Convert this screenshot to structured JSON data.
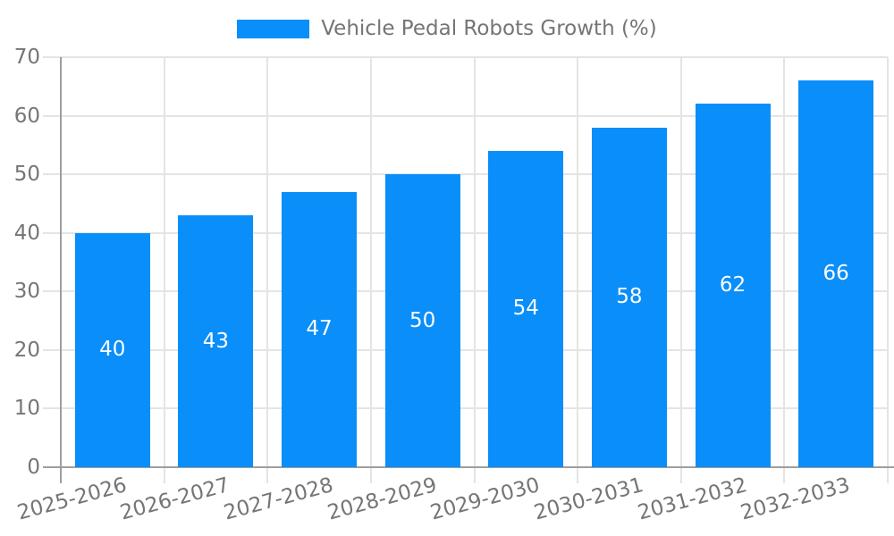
{
  "chart_data": {
    "type": "bar",
    "title": "Vehicle Pedal Robots Growth (%)",
    "legend": {
      "position": "top",
      "entries": [
        "Vehicle Pedal Robots Growth (%)"
      ]
    },
    "categories": [
      "2025-2026",
      "2026-2027",
      "2027-2028",
      "2028-2029",
      "2029-2030",
      "2030-2031",
      "2031-2032",
      "2032-2033"
    ],
    "values": [
      40,
      43,
      47,
      50,
      54,
      58,
      62,
      66
    ],
    "bar_value_labels": [
      "40",
      "43",
      "47",
      "50",
      "54",
      "58",
      "62",
      "66"
    ],
    "xlabel": "",
    "ylabel": "",
    "ylim": [
      0,
      70
    ],
    "yticks": [
      0,
      10,
      20,
      30,
      40,
      50,
      60,
      70
    ],
    "grid": true,
    "x_tick_label_rotation_deg": -15,
    "colors": {
      "bar": "#0A8EF9",
      "bar_label": "#FFFFFF",
      "grid_line": "#E4E4E4",
      "axis_line": "#9E9E9E",
      "tick_label": "#757575",
      "legend_text": "#757575",
      "background": "#FFFFFF"
    }
  }
}
